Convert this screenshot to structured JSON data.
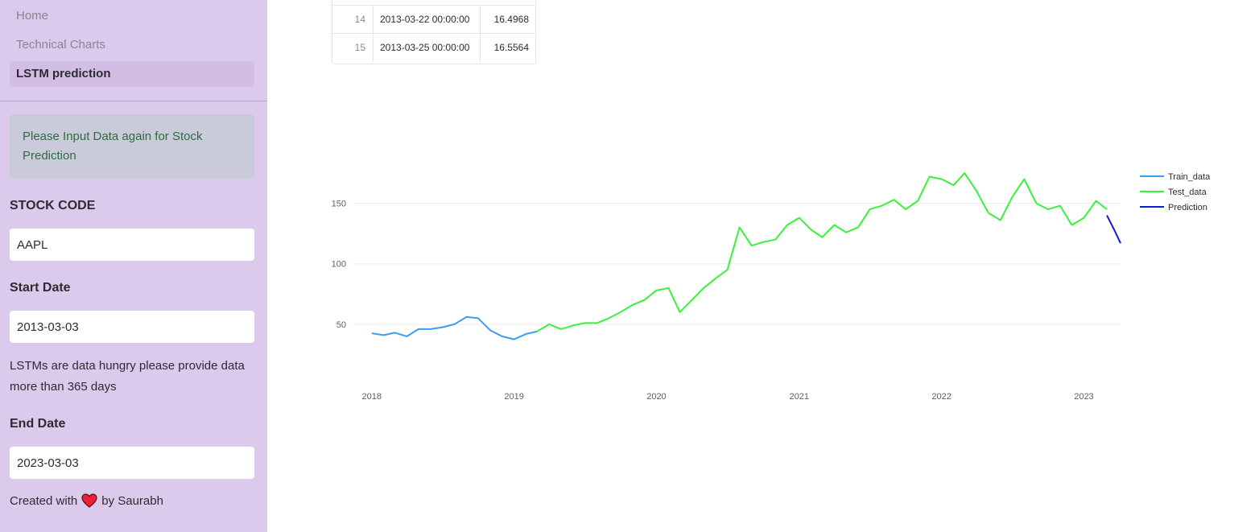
{
  "sidebar": {
    "nav": [
      {
        "label": "Home",
        "active": false
      },
      {
        "label": "Technical Charts",
        "active": false
      },
      {
        "label": "LSTM prediction",
        "active": true
      }
    ],
    "alert": "Please Input Data again for Stock Prediction",
    "stock_code_label": "STOCK CODE",
    "stock_code_value": "AAPL",
    "start_date_label": "Start Date",
    "start_date_value": "2013-03-03",
    "note": "LSTMs are data hungry please provide data more than 365 days",
    "end_date_label": "End Date",
    "end_date_value": "2023-03-03",
    "footer_before": "Created with",
    "footer_icon": "heart-icon",
    "footer_after": "by Saurabh"
  },
  "table": {
    "rows": [
      {
        "index": "14",
        "date": "2013-03-22 00:00:00",
        "value": "16.4968"
      },
      {
        "index": "15",
        "date": "2013-03-25 00:00:00",
        "value": "16.5564"
      }
    ]
  },
  "colors": {
    "train": "#3d9df0",
    "test": "#39f23a",
    "prediction": "#0a1bd6"
  },
  "chart_data": {
    "type": "line",
    "x_type": "date",
    "x_ticks": [
      "2018",
      "2019",
      "2020",
      "2021",
      "2022",
      "2023"
    ],
    "y_ticks": [
      50,
      100,
      150
    ],
    "ylim": [
      0,
      185
    ],
    "legend_position": "top-right",
    "series": [
      {
        "name": "Train_data",
        "x": [
          "2018-01-01",
          "2018-02-01",
          "2018-03-01",
          "2018-04-01",
          "2018-05-01",
          "2018-06-01",
          "2018-07-01",
          "2018-08-01",
          "2018-09-01",
          "2018-10-01",
          "2018-11-01",
          "2018-12-01",
          "2019-01-01",
          "2019-02-01",
          "2019-03-01"
        ],
        "y": [
          42.5,
          41,
          43,
          40,
          46,
          46,
          47.5,
          50,
          56,
          55,
          45,
          40,
          37.5,
          42,
          44
        ]
      },
      {
        "name": "Test_data",
        "x": [
          "2019-03-01",
          "2019-04-01",
          "2019-05-01",
          "2019-06-01",
          "2019-07-01",
          "2019-08-01",
          "2019-09-01",
          "2019-10-01",
          "2019-11-01",
          "2019-12-01",
          "2020-01-01",
          "2020-02-01",
          "2020-03-01",
          "2020-04-01",
          "2020-05-01",
          "2020-06-01",
          "2020-07-01",
          "2020-08-01",
          "2020-09-01",
          "2020-10-01",
          "2020-11-01",
          "2020-12-01",
          "2021-01-01",
          "2021-02-01",
          "2021-03-01",
          "2021-04-01",
          "2021-05-01",
          "2021-06-01",
          "2021-07-01",
          "2021-08-01",
          "2021-09-01",
          "2021-10-01",
          "2021-11-01",
          "2021-12-01",
          "2022-01-01",
          "2022-02-01",
          "2022-03-01",
          "2022-04-01",
          "2022-05-01",
          "2022-06-01",
          "2022-07-01",
          "2022-08-01",
          "2022-09-01",
          "2022-10-01",
          "2022-11-01",
          "2022-12-01",
          "2023-01-01",
          "2023-02-01",
          "2023-03-01"
        ],
        "y": [
          44,
          50,
          46,
          49,
          51,
          51,
          55,
          60,
          66,
          70,
          78,
          80,
          60,
          70,
          80,
          88,
          95,
          130,
          115,
          118,
          120,
          132,
          138,
          128,
          122,
          132,
          126,
          130,
          145,
          148,
          153,
          145,
          152,
          172,
          170,
          165,
          175,
          160,
          142,
          136,
          155,
          170,
          150,
          145,
          148,
          132,
          138,
          152,
          145
        ]
      },
      {
        "name": "Prediction",
        "x": [
          "2023-03-01",
          "2023-03-20",
          "2023-04-05"
        ],
        "y": [
          140,
          128,
          117
        ]
      }
    ]
  }
}
